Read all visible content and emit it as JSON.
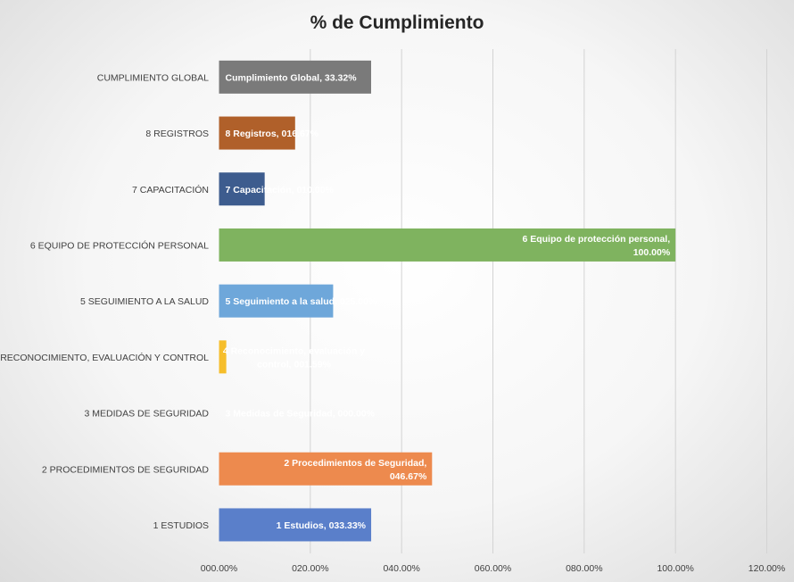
{
  "chart_data": {
    "type": "bar",
    "orientation": "horizontal",
    "title": "% de Cumplimiento",
    "xlabel": "",
    "ylabel": "",
    "xlim": [
      0,
      120
    ],
    "xticks": [
      "000.00%",
      "020.00%",
      "040.00%",
      "060.00%",
      "080.00%",
      "100.00%",
      "120.00%"
    ],
    "grid": "vertical",
    "legend": "none",
    "categories": [
      "CUMPLIMIENTO GLOBAL",
      "8 REGISTROS",
      "7 CAPACITACIÓN",
      "6 EQUIPO DE PROTECCIÓN PERSONAL",
      "5 SEGUIMIENTO A LA SALUD",
      "4 RECONOCIMIENTO, EVALUACIÓN Y CONTROL",
      "3 MEDIDAS DE SEGURIDAD",
      "2 PROCEDIMIENTOS DE SEGURIDAD",
      "1 ESTUDIOS"
    ],
    "values": [
      33.32,
      16.67,
      10.0,
      100.0,
      25.0,
      1.59,
      0.0,
      46.67,
      33.33
    ],
    "data_labels": [
      [
        "Cumplimiento Global, 33.32%"
      ],
      [
        "8 Registros, 016.67%"
      ],
      [
        "7 Capacitación, 010.00%"
      ],
      [
        "6 Equipo de protección personal,",
        "100.00%"
      ],
      [
        "5 Seguimiento a la salud, 025.00%"
      ],
      [
        "4 Reconocimiento, evaluación y",
        "control, 001.59%"
      ],
      [
        "3 Medidas de Seguridad, 000.00%"
      ],
      [
        "2 Procedimientos de Seguridad,",
        "046.67%"
      ],
      [
        "1 Estudios, 033.33%"
      ]
    ],
    "colors": [
      "#7a7a7a",
      "#b0602a",
      "#3d5c8e",
      "#7fb35f",
      "#6ea7da",
      "#f6be2b",
      "#a5a5a5",
      "#ed8a4e",
      "#5a7fca"
    ]
  }
}
